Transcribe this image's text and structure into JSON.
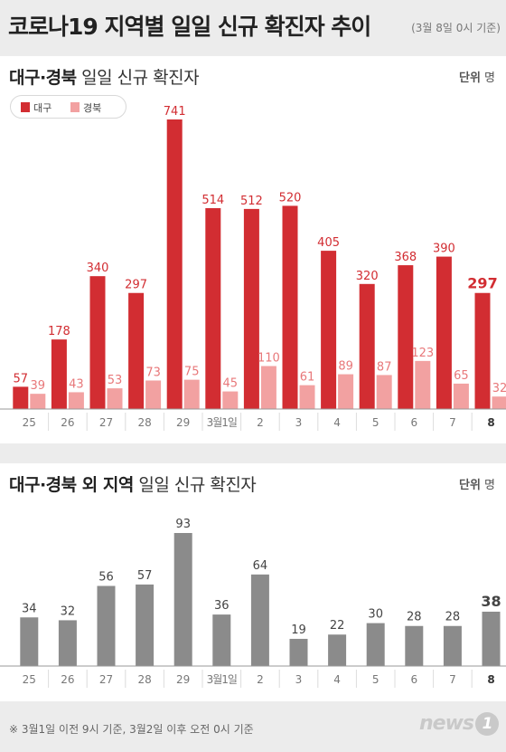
{
  "header": {
    "title": "코로나19 지역별 일일 신규 확진자 추이",
    "subtitle": "(3월 8일 0시 기준)"
  },
  "panel1": {
    "title_bold": "대구·경북",
    "title_rest": " 일일 신규 확진자",
    "unit_bold": "단위",
    "unit_rest": " 명",
    "legend": [
      "대구",
      "경북"
    ]
  },
  "panel2": {
    "title_bold": "대구·경북 외 지역",
    "title_rest": " 일일 신규 확진자",
    "unit_bold": "단위",
    "unit_rest": " 명"
  },
  "footer": {
    "note": "※ 3월1일 이전 9시 기준, 3월2일 이후 오전 0시 기준",
    "logo_text": "news",
    "logo_badge": "1"
  },
  "colors": {
    "daegu": "#d22d32",
    "gyeongbuk": "#f2a1a1",
    "others": "#8b8b8b",
    "daegu_label": "#d22d32",
    "gyeongbuk_label": "#e8787a"
  },
  "chart_data": [
    {
      "type": "bar",
      "categories": [
        "25",
        "26",
        "27",
        "28",
        "29",
        "3월1일",
        "2",
        "3",
        "4",
        "5",
        "6",
        "7",
        "8"
      ],
      "series": [
        {
          "name": "대구",
          "values": [
            57,
            178,
            340,
            297,
            741,
            514,
            512,
            520,
            405,
            320,
            368,
            390,
            297
          ]
        },
        {
          "name": "경북",
          "values": [
            39,
            43,
            53,
            73,
            75,
            45,
            110,
            61,
            89,
            87,
            123,
            65,
            32
          ]
        }
      ],
      "ylim": [
        0,
        741
      ]
    },
    {
      "type": "bar",
      "categories": [
        "25",
        "26",
        "27",
        "28",
        "29",
        "3월1일",
        "2",
        "3",
        "4",
        "5",
        "6",
        "7",
        "8"
      ],
      "values": [
        34,
        32,
        56,
        57,
        93,
        36,
        64,
        19,
        22,
        30,
        28,
        28,
        38
      ],
      "ylim": [
        0,
        93
      ]
    }
  ]
}
